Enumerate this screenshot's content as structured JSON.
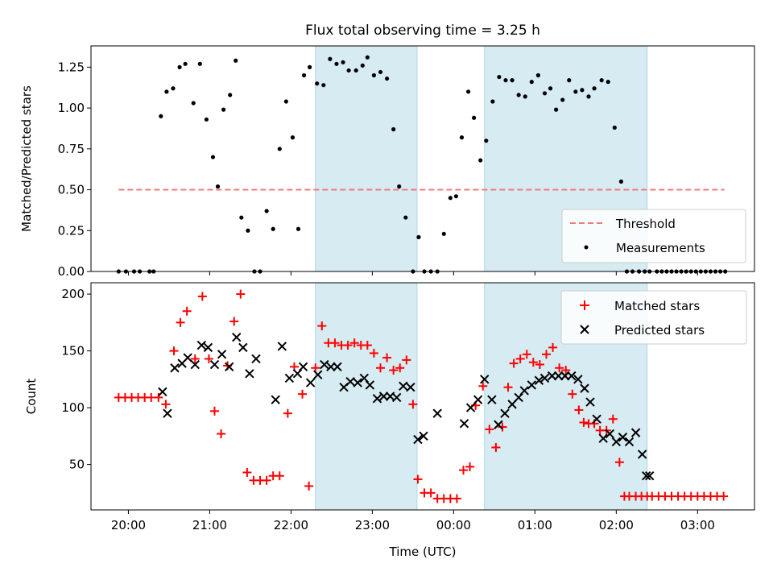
{
  "chart_data": [
    {
      "type": "scatter",
      "title": "Flux total observing time = 3.25 h",
      "xlabel": "",
      "ylabel": "Matched/Predicted stars",
      "ylim": [
        0,
        1.38
      ],
      "yticks": [
        "0.00",
        "0.25",
        "0.50",
        "0.75",
        "1.00",
        "1.25"
      ],
      "ytick_values": [
        0,
        0.25,
        0.5,
        0.75,
        1.0,
        1.25
      ],
      "x_unit": "hours since 20:00 UTC",
      "xlim": [
        -0.46,
        7.7
      ],
      "shaded_spans": [
        [
          2.3,
          3.55
        ],
        [
          4.38,
          6.38
        ]
      ],
      "threshold": {
        "name": "Threshold",
        "value": 0.5,
        "x_range": [
          -0.12,
          7.33
        ],
        "color": "#f07a7a"
      },
      "legend": {
        "placement": "lower-right",
        "entries": [
          "Threshold",
          "Measurements"
        ]
      },
      "series": [
        {
          "name": "Measurements",
          "color": "#000000",
          "x": [
            -0.12,
            -0.03,
            0.07,
            0.14,
            0.26,
            0.31,
            0.4,
            0.47,
            0.55,
            0.63,
            0.7,
            0.8,
            0.88,
            0.96,
            1.04,
            1.1,
            1.17,
            1.25,
            1.32,
            1.39,
            1.47,
            1.55,
            1.62,
            1.7,
            1.78,
            1.86,
            1.94,
            2.02,
            2.09,
            2.16,
            2.23,
            2.32,
            2.4,
            2.48,
            2.56,
            2.64,
            2.71,
            2.8,
            2.88,
            2.94,
            3.02,
            3.1,
            3.18,
            3.26,
            3.33,
            3.41,
            3.5,
            3.57,
            3.64,
            3.72,
            3.8,
            3.88,
            3.96,
            4.03,
            4.1,
            4.18,
            4.25,
            4.33,
            4.4,
            4.48,
            4.56,
            4.64,
            4.72,
            4.8,
            4.88,
            4.96,
            5.04,
            5.12,
            5.19,
            5.26,
            5.34,
            5.42,
            5.5,
            5.58,
            5.66,
            5.73,
            5.82,
            5.9,
            5.98,
            6.06,
            6.13,
            6.2,
            6.28,
            6.35,
            6.41,
            6.5,
            6.56,
            6.62,
            6.68,
            6.74,
            6.8,
            6.86,
            6.92,
            6.98,
            7.04,
            7.1,
            7.16,
            7.22,
            7.28,
            7.34
          ],
          "y": [
            0,
            0,
            0,
            0,
            0,
            0,
            0.95,
            1.1,
            1.12,
            1.25,
            1.27,
            1.03,
            1.27,
            0.93,
            0.7,
            0.52,
            0.99,
            1.08,
            1.29,
            0.33,
            0.25,
            0,
            0,
            0.37,
            0.26,
            0.75,
            1.04,
            0.82,
            0.26,
            1.2,
            1.25,
            1.15,
            1.14,
            1.3,
            1.27,
            1.28,
            1.23,
            1.23,
            1.26,
            1.31,
            1.2,
            1.22,
            1.18,
            0.87,
            0.52,
            0.33,
            0,
            0.21,
            0,
            0,
            0,
            0.23,
            0.45,
            0.46,
            0.82,
            1.1,
            0.94,
            0.68,
            0.8,
            1.04,
            1.19,
            1.17,
            1.17,
            1.08,
            1.07,
            1.16,
            1.2,
            1.09,
            1.12,
            0.99,
            1.05,
            1.17,
            1.1,
            1.11,
            1.07,
            1.12,
            1.17,
            1.16,
            0.88,
            0.55,
            0,
            0,
            0,
            0,
            0,
            0,
            0,
            0,
            0,
            0,
            0,
            0,
            0,
            0,
            0,
            0,
            0,
            0,
            0,
            0
          ]
        }
      ]
    },
    {
      "type": "scatter",
      "title": "",
      "xlabel": "Time (UTC)",
      "ylabel": "Count",
      "ylim": [
        10,
        210
      ],
      "yticks": [
        "50",
        "100",
        "150",
        "200"
      ],
      "ytick_values": [
        50,
        100,
        150,
        200
      ],
      "x_unit": "hours since 20:00 UTC",
      "xlim": [
        -0.46,
        7.7
      ],
      "xticks": [
        "20:00",
        "21:00",
        "22:00",
        "23:00",
        "00:00",
        "01:00",
        "02:00",
        "03:00"
      ],
      "xtick_values": [
        0,
        1,
        2,
        3,
        4,
        5,
        6,
        7
      ],
      "shaded_spans": [
        [
          2.3,
          3.55
        ],
        [
          4.38,
          6.38
        ]
      ],
      "legend": {
        "placement": "top-right",
        "entries": [
          "Matched stars",
          "Predicted stars"
        ]
      },
      "series": [
        {
          "name": "Matched stars",
          "marker": "plus",
          "color": "#ff0000",
          "x": [
            -0.12,
            -0.04,
            0.04,
            0.12,
            0.2,
            0.28,
            0.37,
            0.46,
            0.56,
            0.64,
            0.72,
            0.82,
            0.91,
            0.99,
            1.06,
            1.14,
            1.22,
            1.3,
            1.38,
            1.46,
            1.54,
            1.62,
            1.7,
            1.78,
            1.86,
            1.96,
            2.04,
            2.14,
            2.22,
            2.3,
            2.38,
            2.46,
            2.54,
            2.62,
            2.7,
            2.78,
            2.86,
            2.94,
            3.02,
            3.1,
            3.18,
            3.26,
            3.34,
            3.42,
            3.5,
            3.56,
            3.64,
            3.72,
            3.8,
            3.88,
            3.96,
            4.04,
            4.12,
            4.2,
            4.27,
            4.36,
            4.44,
            4.52,
            4.6,
            4.67,
            4.74,
            4.82,
            4.9,
            4.98,
            5.06,
            5.14,
            5.22,
            5.3,
            5.38,
            5.46,
            5.54,
            5.6,
            5.66,
            5.73,
            5.8,
            5.88,
            5.96,
            6.04,
            6.1,
            6.16,
            6.24,
            6.31,
            6.38,
            6.44,
            6.52,
            6.6,
            6.68,
            6.76,
            6.84,
            6.92,
            7,
            7.08,
            7.16,
            7.24,
            7.32
          ],
          "y": [
            109,
            109,
            109,
            109,
            109,
            109,
            109,
            103,
            150,
            175,
            185,
            143,
            198,
            143,
            97,
            77,
            137,
            176,
            200,
            43,
            36,
            36,
            36,
            40,
            40,
            95,
            136,
            112,
            31,
            135,
            172,
            157,
            157,
            155,
            155,
            157,
            155,
            155,
            148,
            135,
            144,
            133,
            135,
            142,
            103,
            37,
            25,
            25,
            20,
            20,
            20,
            20,
            45,
            48,
            102,
            119,
            81,
            65,
            83,
            118,
            139,
            143,
            147,
            140,
            138,
            147,
            153,
            135,
            133,
            112,
            98,
            87,
            86,
            86,
            80,
            80,
            90,
            52,
            22,
            22,
            22,
            22,
            22,
            22,
            22,
            22,
            22,
            22,
            22,
            22,
            22,
            22,
            22,
            22,
            22
          ]
        },
        {
          "name": "Predicted stars",
          "marker": "x",
          "color": "#000000",
          "x": [
            0.42,
            0.48,
            0.57,
            0.66,
            0.73,
            0.82,
            0.9,
            0.98,
            1.06,
            1.15,
            1.24,
            1.33,
            1.41,
            1.49,
            1.57,
            1.81,
            1.89,
            1.98,
            2.08,
            2.15,
            2.24,
            2.33,
            2.41,
            2.49,
            2.57,
            2.65,
            2.73,
            2.82,
            2.9,
            2.97,
            3.06,
            3.14,
            3.22,
            3.3,
            3.38,
            3.47,
            3.56,
            3.63,
            3.8,
            4.13,
            4.21,
            4.3,
            4.38,
            4.47,
            4.55,
            4.63,
            4.72,
            4.8,
            4.87,
            4.96,
            5.05,
            5.12,
            5.21,
            5.29,
            5.37,
            5.45,
            5.53,
            5.61,
            5.68,
            5.76,
            5.84,
            5.92,
            6,
            6.08,
            6.16,
            6.24,
            6.32,
            6.37,
            6.41
          ],
          "y": [
            114,
            95,
            135,
            139,
            144,
            138,
            155,
            153,
            138,
            147,
            136,
            162,
            153,
            130,
            143,
            107,
            154,
            126,
            130,
            136,
            122,
            129,
            138,
            136,
            136,
            118,
            123,
            122,
            126,
            120,
            108,
            110,
            110,
            109,
            119,
            118,
            72,
            75,
            95,
            86,
            100,
            107,
            125,
            107,
            85,
            95,
            103,
            109,
            115,
            120,
            124,
            126,
            128,
            128,
            128,
            128,
            125,
            117,
            105,
            90,
            73,
            77,
            70,
            74,
            70,
            78,
            59,
            40,
            40
          ]
        }
      ]
    }
  ]
}
